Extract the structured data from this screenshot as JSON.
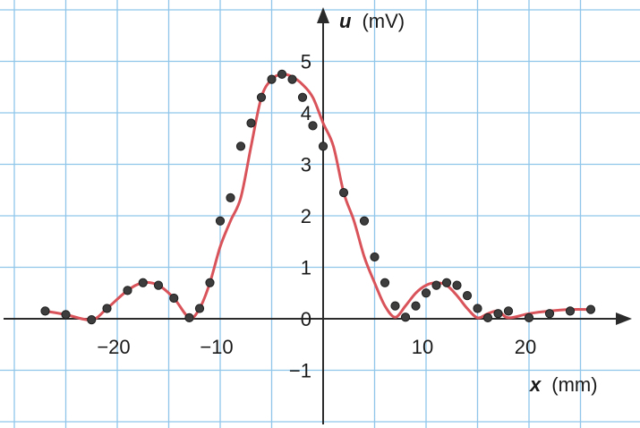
{
  "chart_data": {
    "type": "scatter",
    "x_axis": {
      "label_var": "x",
      "label_unit": "(mm)",
      "ticks": [
        -20,
        -10,
        10,
        20
      ],
      "tick_labels": [
        "−20",
        "−10",
        "10",
        "20"
      ],
      "range": [
        -31,
        29
      ]
    },
    "y_axis": {
      "label_var": "u",
      "label_unit": "(mV)",
      "ticks": [
        -1,
        0,
        1,
        2,
        3,
        4,
        5
      ],
      "tick_labels": [
        "−1",
        "0",
        "1",
        "2",
        "3",
        "4",
        "5"
      ],
      "range": [
        -2,
        6
      ]
    },
    "grid": true,
    "grid_step": {
      "x": 5,
      "y": 1
    },
    "series": [
      {
        "style": "points",
        "color": "#3d3d3d",
        "x": [
          -27,
          -25,
          -22.5,
          -21,
          -19,
          -17.5,
          -16,
          -14.5,
          -13,
          -12,
          -11,
          -10,
          -9,
          -8,
          -7,
          -6,
          -5,
          -4,
          -3,
          -2,
          -1,
          0,
          2,
          4,
          5,
          6,
          7,
          8,
          9,
          10,
          11,
          12,
          13,
          14,
          15,
          16,
          17,
          18,
          20,
          22,
          24,
          26
        ],
        "y": [
          0.15,
          0.08,
          -0.02,
          0.2,
          0.55,
          0.7,
          0.65,
          0.4,
          0.02,
          0.2,
          0.7,
          1.9,
          2.35,
          3.35,
          3.8,
          4.3,
          4.65,
          4.75,
          4.65,
          4.3,
          3.75,
          3.35,
          2.45,
          1.9,
          1.2,
          0.7,
          0.25,
          0.03,
          0.25,
          0.5,
          0.65,
          0.7,
          0.65,
          0.45,
          0.2,
          0.02,
          0.1,
          0.15,
          0.02,
          0.1,
          0.15,
          0.18
        ]
      },
      {
        "style": "line",
        "color": "#d9535a",
        "x": [
          -27,
          -25,
          -22.5,
          -21,
          -19,
          -17.5,
          -16,
          -14.5,
          -13,
          -12,
          -11,
          -10,
          -9,
          -8,
          -7,
          -6,
          -5,
          -4,
          -3,
          -2,
          -1,
          0,
          1,
          2,
          3,
          4,
          5,
          6,
          7,
          8,
          9,
          10,
          11,
          12,
          13,
          14,
          15,
          16,
          17,
          18,
          20,
          22,
          24,
          26
        ],
        "y": [
          0.15,
          0.08,
          -0.02,
          0.2,
          0.55,
          0.7,
          0.65,
          0.4,
          0.02,
          0.2,
          0.7,
          1.4,
          1.9,
          2.35,
          3.35,
          4.3,
          4.65,
          4.75,
          4.7,
          4.55,
          4.3,
          3.8,
          3.35,
          2.45,
          1.9,
          1.2,
          0.7,
          0.25,
          0.03,
          0.25,
          0.5,
          0.65,
          0.7,
          0.65,
          0.45,
          0.2,
          0.02,
          0.1,
          0.15,
          0.02,
          0.1,
          0.15,
          0.18,
          0.18
        ]
      }
    ]
  }
}
